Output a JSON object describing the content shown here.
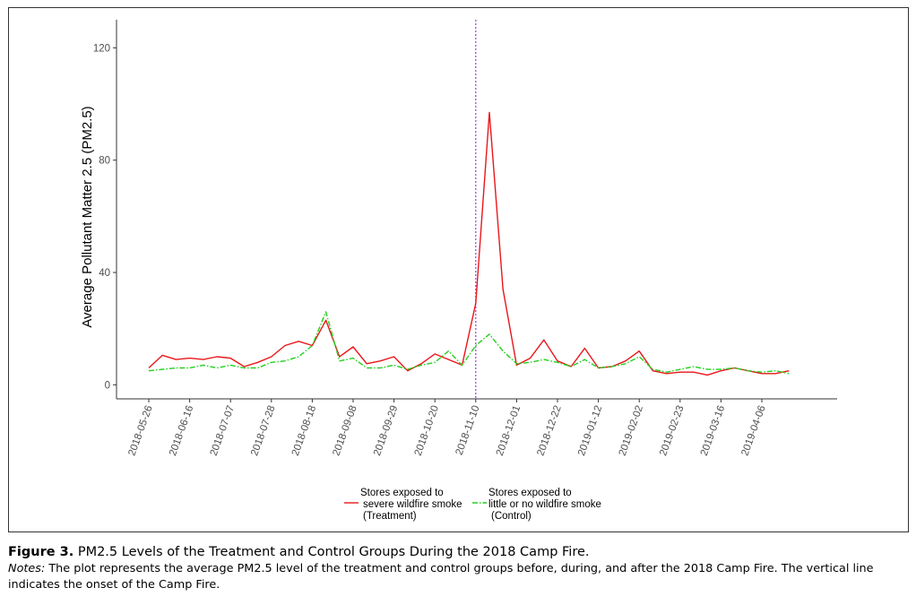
{
  "chart_data": {
    "type": "line",
    "title": "",
    "xlabel": "",
    "ylabel": "Average Pollutant Matter 2.5 (PM2.5)",
    "ylim": [
      -5,
      130
    ],
    "yticks": [
      0,
      40,
      80,
      120
    ],
    "x_tick_labels": [
      "2018-05-26",
      "2018-06-16",
      "2018-07-07",
      "2018-07-28",
      "2018-08-18",
      "2018-09-08",
      "2018-09-29",
      "2018-10-20",
      "2018-11-10",
      "2018-12-01",
      "2018-12-22",
      "2019-01-12",
      "2019-02-02",
      "2019-02-23",
      "2019-03-16",
      "2019-04-06"
    ],
    "x_weeks": [
      "2018-05-26",
      "2018-06-02",
      "2018-06-09",
      "2018-06-16",
      "2018-06-23",
      "2018-06-30",
      "2018-07-07",
      "2018-07-14",
      "2018-07-21",
      "2018-07-28",
      "2018-08-04",
      "2018-08-11",
      "2018-08-18",
      "2018-08-25",
      "2018-09-01",
      "2018-09-08",
      "2018-09-15",
      "2018-09-22",
      "2018-09-29",
      "2018-10-06",
      "2018-10-13",
      "2018-10-20",
      "2018-10-27",
      "2018-11-03",
      "2018-11-10",
      "2018-11-17",
      "2018-11-24",
      "2018-12-01",
      "2018-12-08",
      "2018-12-15",
      "2018-12-22",
      "2018-12-29",
      "2019-01-05",
      "2019-01-12",
      "2019-01-19",
      "2019-01-26",
      "2019-02-02",
      "2019-02-09",
      "2019-02-16",
      "2019-02-23",
      "2019-03-02",
      "2019-03-09",
      "2019-03-16",
      "2019-03-23",
      "2019-03-30",
      "2019-04-06",
      "2019-04-13",
      "2019-04-20"
    ],
    "event_date": "2018-11-10",
    "series": [
      {
        "name": "Stores exposed to severe wildfire smoke (Treatment)",
        "color": "#e8171a",
        "dash": "solid",
        "values": [
          6,
          10.5,
          9,
          9.5,
          9,
          10,
          9.5,
          6.5,
          8,
          10,
          14,
          15.5,
          14,
          23,
          10,
          13.5,
          7.5,
          8.5,
          10,
          5,
          7.5,
          11,
          9,
          7,
          29,
          97,
          34,
          7,
          9.5,
          16,
          8.5,
          6.5,
          13,
          6,
          6.5,
          8.5,
          12,
          5,
          4,
          4.5,
          4.5,
          3.5,
          5,
          6,
          5,
          4,
          4,
          5
        ]
      },
      {
        "name": "Stores exposed to little or no wildfire smoke (Control)",
        "color": "#22d01f",
        "dash": "dashdot",
        "values": [
          5,
          5.5,
          6,
          6,
          7,
          6,
          7,
          6,
          6,
          8,
          8.5,
          10,
          14,
          26,
          8.5,
          9.5,
          6,
          6,
          7,
          5.5,
          7,
          8,
          12,
          7,
          14,
          18,
          12,
          7.5,
          8,
          9,
          8,
          6.5,
          9,
          6,
          6.5,
          7.5,
          10,
          5.5,
          4.5,
          5.5,
          6.5,
          5.5,
          5.5,
          6,
          5,
          4.5,
          5,
          4
        ]
      }
    ],
    "legend": {
      "placement": "bottom",
      "entries": [
        {
          "lines": [
            "Stores exposed to",
            "severe wildfire smoke",
            "(Treatment)"
          ]
        },
        {
          "lines": [
            "Stores exposed to",
            "little or no wildfire smoke",
            "(Control)"
          ]
        }
      ]
    }
  },
  "caption": {
    "figure_label": "Figure 3.",
    "figure_title": "PM2.5 Levels of the Treatment and Control Groups During the 2018 Camp Fire.",
    "notes_label": "Notes:",
    "notes_text": "The plot represents the average PM2.5 level of the treatment and control groups before, during, and after the 2018 Camp Fire. The vertical line indicates the onset of the Camp Fire."
  },
  "colors": {
    "event_line": "#9b4fe0",
    "axis": "#333333",
    "tick_text": "#4d4d4d"
  }
}
